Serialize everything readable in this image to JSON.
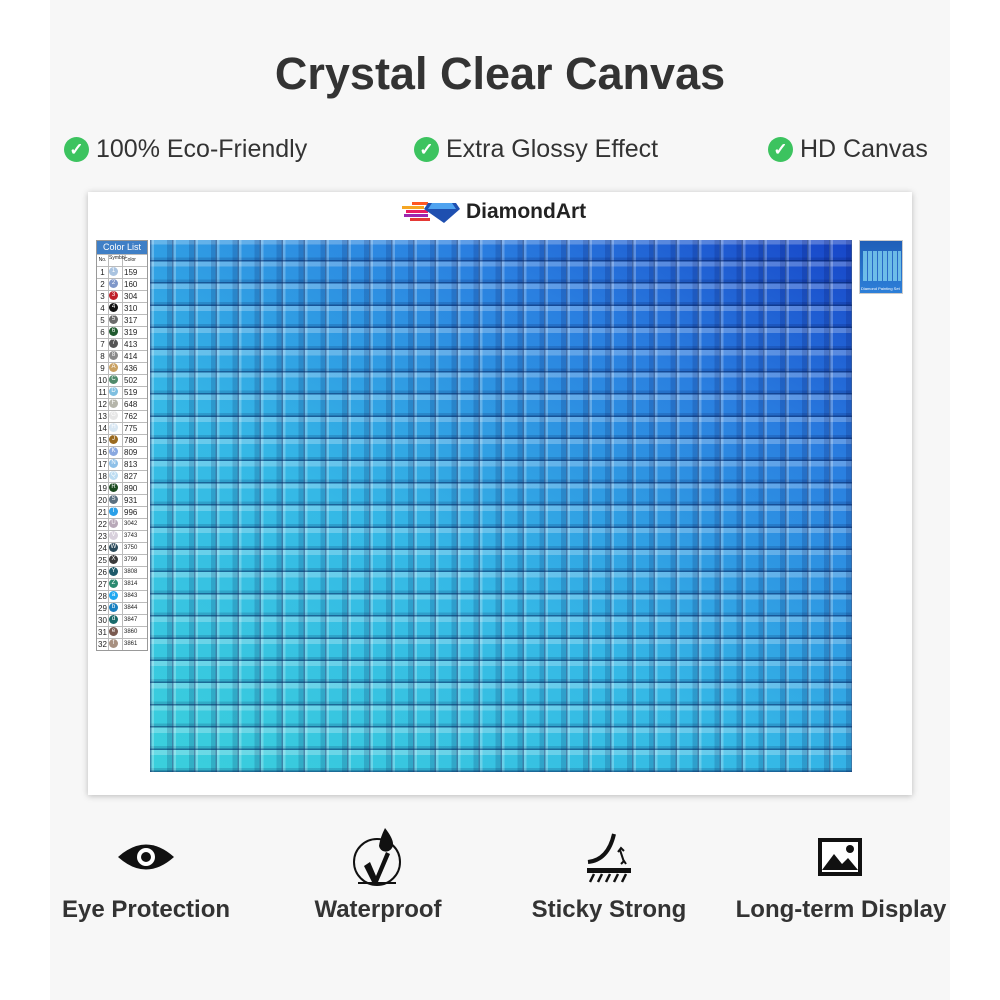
{
  "title": "Crystal Clear Canvas",
  "features": [
    "100% Eco-Friendly",
    "Extra Glossy Effect",
    "HD Canvas"
  ],
  "canvas": {
    "brand": "DiamondArt",
    "legend": {
      "title": "Color List",
      "headers": [
        "No.",
        "Symbol",
        "Color"
      ],
      "rows": [
        [
          "1",
          "1",
          "159",
          "#a9c3e0"
        ],
        [
          "2",
          "2",
          "160",
          "#7f97c9"
        ],
        [
          "3",
          "3",
          "304",
          "#c0202a"
        ],
        [
          "4",
          "4",
          "310",
          "#111111"
        ],
        [
          "5",
          "5",
          "317",
          "#6b6b6b"
        ],
        [
          "6",
          "6",
          "319",
          "#1f5a2e"
        ],
        [
          "7",
          "7",
          "413",
          "#555555"
        ],
        [
          "8",
          "8",
          "414",
          "#8a8a8a"
        ],
        [
          "9",
          "A",
          "436",
          "#c9a060"
        ],
        [
          "10",
          "C",
          "502",
          "#4f8a6a"
        ],
        [
          "11",
          "D",
          "519",
          "#7fbfe0"
        ],
        [
          "12",
          "F",
          "648",
          "#b5b5aa"
        ],
        [
          "13",
          "G",
          "762",
          "#e6e6e6"
        ],
        [
          "14",
          "H",
          "775",
          "#d7e6f2"
        ],
        [
          "15",
          "J",
          "780",
          "#9a6a20"
        ],
        [
          "16",
          "K",
          "809",
          "#8aa8e0"
        ],
        [
          "17",
          "N",
          "813",
          "#8ec0e8"
        ],
        [
          "18",
          "Q",
          "827",
          "#bcdcf2"
        ],
        [
          "19",
          "R",
          "890",
          "#1a4a1e"
        ],
        [
          "20",
          "S",
          "931",
          "#5a7080"
        ],
        [
          "21",
          "T",
          "996",
          "#2aa0e8"
        ],
        [
          "22",
          "U",
          "3042",
          "#b8a8b8"
        ],
        [
          "23",
          "V",
          "3743",
          "#d8d0dc"
        ],
        [
          "24",
          "W",
          "3750",
          "#2a4a5a"
        ],
        [
          "25",
          "X",
          "3799",
          "#3a3a3a"
        ],
        [
          "26",
          "Y",
          "3808",
          "#1e5a6a"
        ],
        [
          "27",
          "Z",
          "3814",
          "#2a8a70"
        ],
        [
          "28",
          "a",
          "3843",
          "#20a8f0"
        ],
        [
          "29",
          "b",
          "3844",
          "#1a80c0"
        ],
        [
          "30",
          "d",
          "3847",
          "#1a6a6a"
        ],
        [
          "31",
          "e",
          "3860",
          "#7a5a50"
        ],
        [
          "32",
          "f",
          "3861",
          "#a89080"
        ]
      ]
    },
    "thumbnail_caption": "Diamond Painting Set"
  },
  "benefits": [
    {
      "icon": "eye-icon",
      "label": "Eye Protection"
    },
    {
      "icon": "waterproof-icon",
      "label": "Waterproof"
    },
    {
      "icon": "sticky-icon",
      "label": "Sticky Strong"
    },
    {
      "icon": "image-icon",
      "label": "Long-term Display"
    }
  ],
  "colors": {
    "check": "#3cc35f",
    "text": "#333333",
    "tile_light": "#3ad0dc",
    "tile_dark": "#1745c8"
  }
}
